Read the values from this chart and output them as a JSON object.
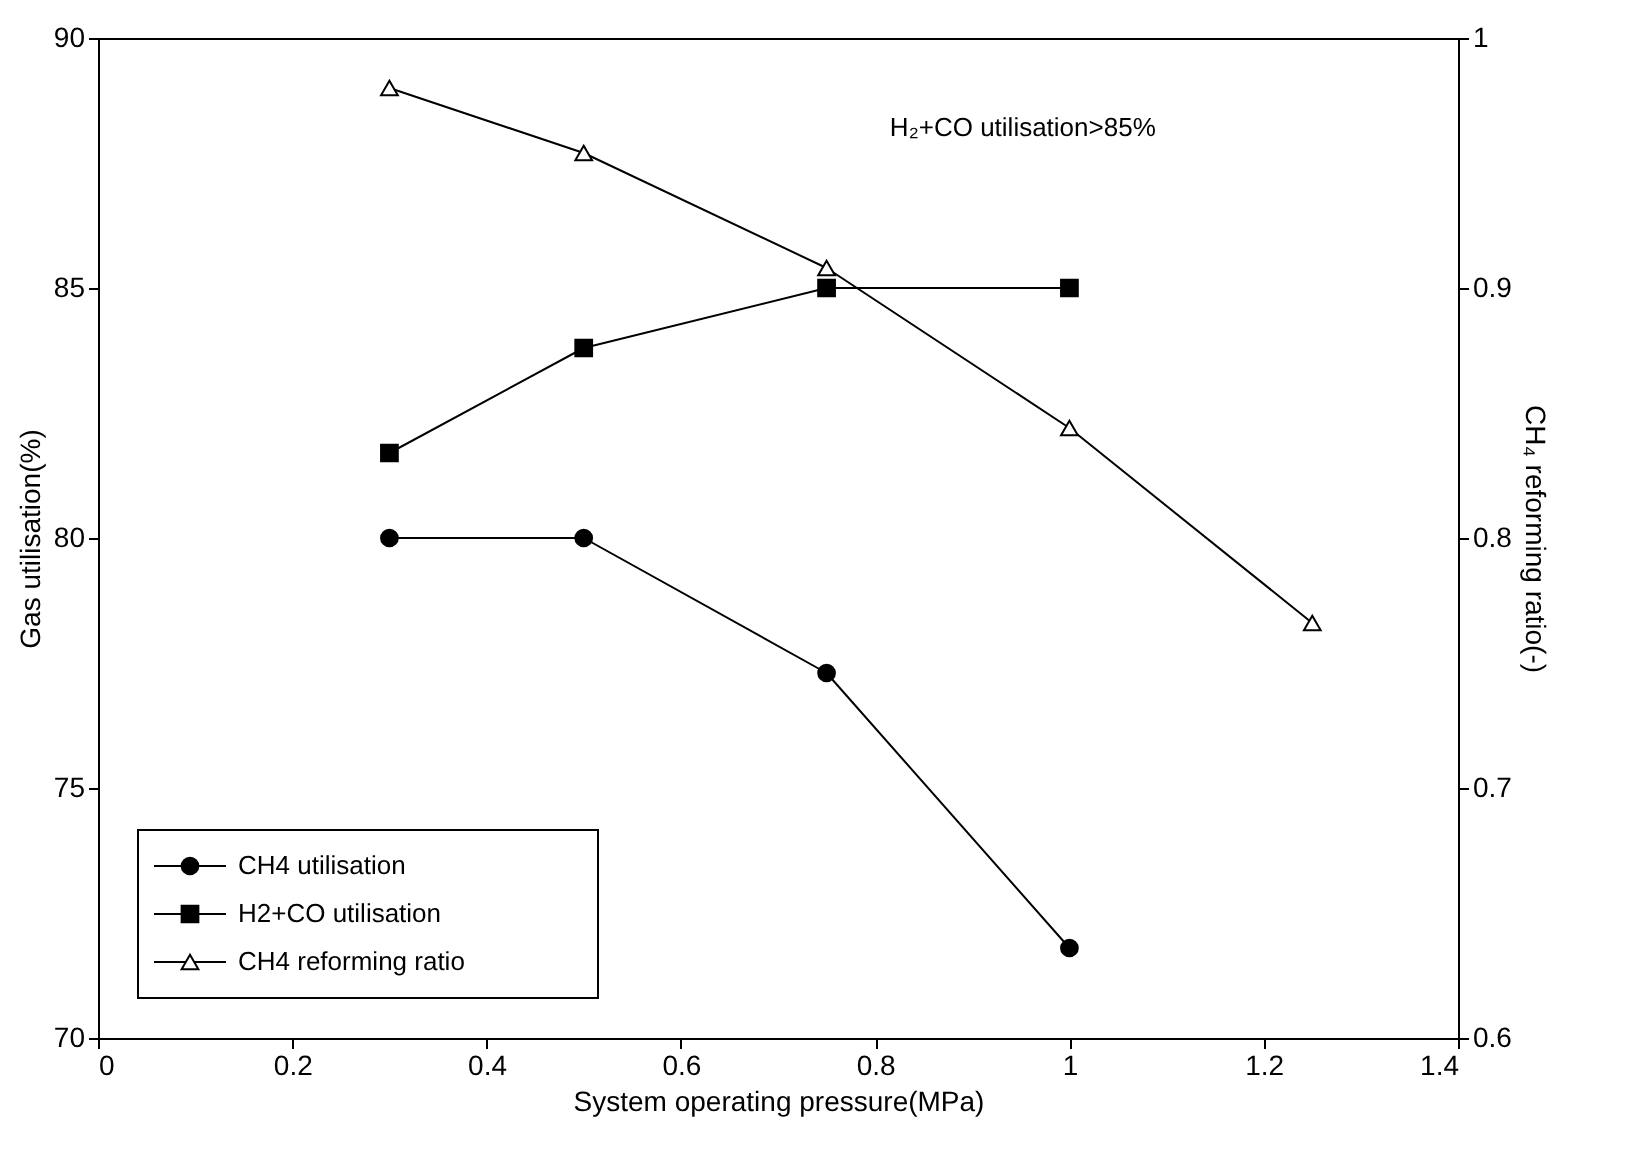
{
  "chart_data": {
    "type": "line",
    "xlabel": "System operating pressure(MPa)",
    "ylabel": "Gas utilisation(%)",
    "y2label": "CH₄ reforming ratio(-)",
    "xlim": [
      0,
      1.4
    ],
    "xticks": [
      0,
      0.2,
      0.4,
      0.6,
      0.8,
      1,
      1.2,
      1.4
    ],
    "ylim": [
      70,
      90
    ],
    "yticks": [
      70,
      75,
      80,
      85,
      90
    ],
    "y2lim": [
      0.6,
      1
    ],
    "y2ticks": [
      0.6,
      0.7,
      0.8,
      0.9,
      1
    ],
    "grid": false,
    "legend": "bottom left",
    "annotations": [
      "H₂+CO utilisation>85%"
    ],
    "series": [
      {
        "name": "CH4 utilisation",
        "color": "#000000",
        "marker": "circle",
        "x": [
          0.3,
          0.5,
          0.75,
          1.0
        ],
        "values": [
          80,
          80,
          77.3,
          71.8
        ]
      },
      {
        "name": "H2+CO utilisation",
        "color": "#000000",
        "marker": "square",
        "x": [
          0.3,
          0.5,
          0.75,
          1.0
        ],
        "values": [
          81.7,
          83.8,
          85,
          85
        ]
      },
      {
        "name": "CH4 reforming ratio",
        "color": "#000000",
        "marker": "triangle",
        "axis": "y2",
        "x": [
          0.3,
          0.5,
          0.75,
          1.0,
          1.25
        ],
        "values": [
          0.98,
          0.954,
          0.908,
          0.844,
          0.766
        ]
      }
    ]
  }
}
